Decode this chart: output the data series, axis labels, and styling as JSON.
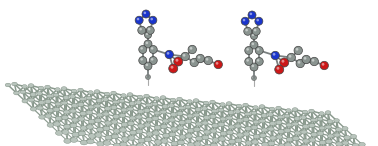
{
  "bg_color": "#ffffff",
  "graphene_atom_color": "#b8c4bc",
  "graphene_bond_color": "#8a9a8e",
  "graphene_atom_edge": "#7a8a7e",
  "carbon_color": "#8a9490",
  "nitrogen_color": "#1a35cc",
  "oxygen_color": "#cc1818",
  "bond_color": "#7a8080",
  "fig_width": 3.78,
  "fig_height": 1.46,
  "dpi": 100
}
